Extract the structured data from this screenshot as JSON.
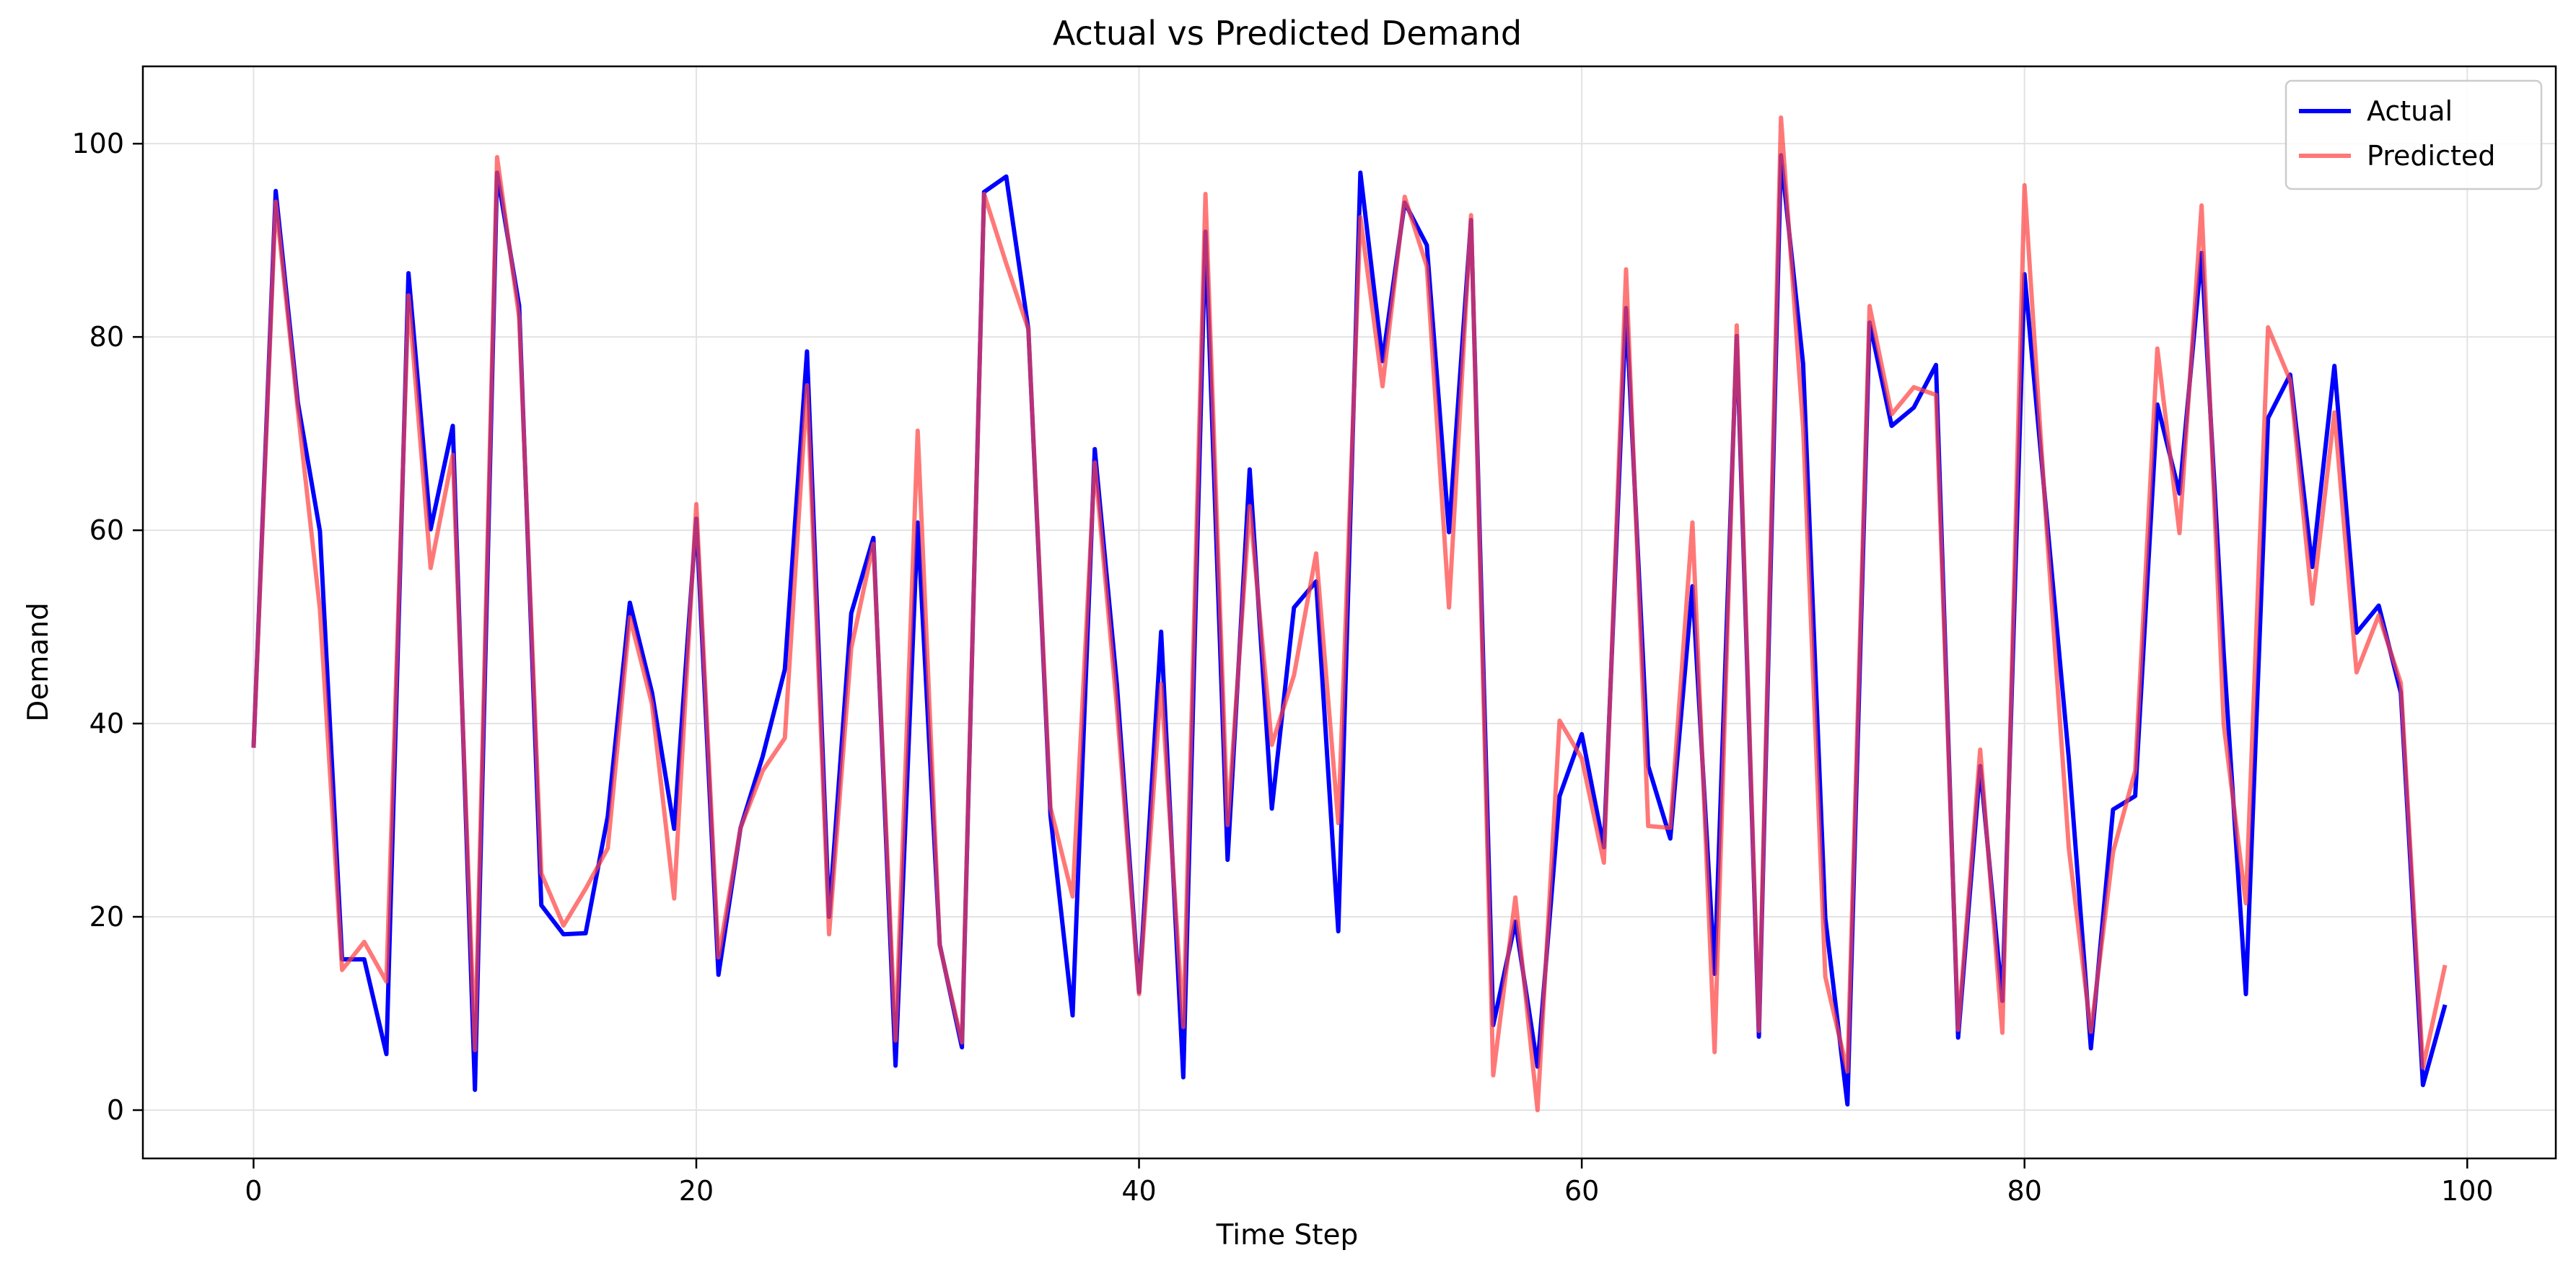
{
  "chart_data": {
    "type": "line",
    "title": "Actual vs Predicted Demand",
    "xlabel": "Time Step",
    "ylabel": "Demand",
    "xlim": [
      -5,
      104
    ],
    "ylim": [
      -5,
      108
    ],
    "xticks": [
      0,
      20,
      40,
      60,
      80,
      100
    ],
    "yticks": [
      0,
      20,
      40,
      60,
      80,
      100
    ],
    "xtick_labels": [
      "0",
      "20",
      "40",
      "60",
      "80",
      "100"
    ],
    "ytick_labels": [
      "0",
      "20",
      "40",
      "60",
      "80",
      "100"
    ],
    "grid": true,
    "legend_position": "top-right",
    "x": [
      0,
      1,
      2,
      3,
      4,
      5,
      6,
      7,
      8,
      9,
      10,
      11,
      12,
      13,
      14,
      15,
      16,
      17,
      18,
      19,
      20,
      21,
      22,
      23,
      24,
      25,
      26,
      27,
      28,
      29,
      30,
      31,
      32,
      33,
      34,
      35,
      36,
      37,
      38,
      39,
      40,
      41,
      42,
      43,
      44,
      45,
      46,
      47,
      48,
      49,
      50,
      51,
      52,
      53,
      54,
      55,
      56,
      57,
      58,
      59,
      60,
      61,
      62,
      63,
      64,
      65,
      66,
      67,
      68,
      69,
      70,
      71,
      72,
      73,
      74,
      75,
      76,
      77,
      78,
      79,
      80,
      81,
      82,
      83,
      84,
      85,
      86,
      87,
      88,
      89,
      90,
      91,
      92,
      93,
      94,
      95,
      96,
      97,
      98,
      99
    ],
    "series": [
      {
        "name": "Actual",
        "color": "#0000ff",
        "values": [
          37.5,
          95.1,
          73.2,
          59.9,
          15.6,
          15.6,
          5.8,
          86.6,
          60.1,
          70.8,
          2.1,
          97.0,
          83.2,
          21.2,
          18.2,
          18.3,
          30.4,
          52.5,
          43.2,
          29.1,
          61.2,
          14.0,
          29.2,
          36.6,
          45.6,
          78.5,
          20.0,
          51.4,
          59.2,
          4.6,
          60.8,
          17.1,
          6.5,
          95.0,
          96.6,
          80.8,
          30.5,
          9.8,
          68.4,
          44.0,
          12.2,
          49.5,
          3.4,
          90.9,
          25.9,
          66.3,
          31.2,
          52.0,
          54.7,
          18.5,
          97.0,
          77.5,
          93.9,
          89.5,
          59.8,
          92.1,
          8.8,
          19.5,
          4.5,
          32.5,
          38.9,
          27.2,
          83.0,
          35.6,
          28.1,
          54.2,
          14.1,
          80.1,
          7.6,
          98.8,
          77.2,
          19.9,
          0.6,
          81.5,
          70.8,
          72.7,
          77.1,
          7.5,
          35.6,
          11.3,
          86.5,
          61.4,
          36.4,
          6.4,
          31.1,
          32.5,
          73.0,
          63.8,
          88.7,
          47.2,
          12.0,
          71.6,
          76.1,
          56.2,
          77.0,
          49.4,
          52.2,
          43.2,
          2.6,
          10.9
        ]
      },
      {
        "name": "Predicted",
        "color": "#ff4444",
        "values": [
          37.5,
          94.0,
          72.4,
          51.8,
          14.5,
          17.4,
          13.3,
          84.3,
          56.1,
          67.8,
          6.2,
          98.6,
          82.0,
          24.5,
          19.1,
          22.9,
          27.1,
          51.0,
          42.0,
          21.9,
          62.7,
          15.8,
          29.2,
          35.1,
          38.5,
          75.0,
          18.2,
          47.8,
          58.6,
          7.2,
          70.3,
          17.0,
          7.0,
          94.8,
          87.6,
          80.8,
          31.3,
          22.1,
          67.0,
          41.6,
          12.0,
          44.1,
          8.6,
          94.8,
          29.5,
          62.5,
          37.8,
          45.0,
          57.6,
          29.7,
          92.4,
          74.9,
          94.5,
          87.3,
          52.0,
          92.6,
          3.6,
          22.0,
          0.0,
          40.3,
          36.4,
          25.6,
          87.0,
          29.4,
          29.2,
          60.8,
          6.0,
          81.2,
          8.2,
          102.7,
          70.6,
          13.8,
          4.0,
          83.2,
          72.0,
          74.8,
          74.0,
          8.3,
          37.3,
          8.0,
          95.7,
          60.1,
          27.1,
          8.1,
          26.7,
          35.1,
          78.8,
          59.7,
          93.6,
          39.9,
          21.4,
          81.0,
          75.5,
          52.4,
          72.2,
          45.3,
          51.2,
          44.2,
          4.4,
          15.0
        ]
      }
    ]
  }
}
